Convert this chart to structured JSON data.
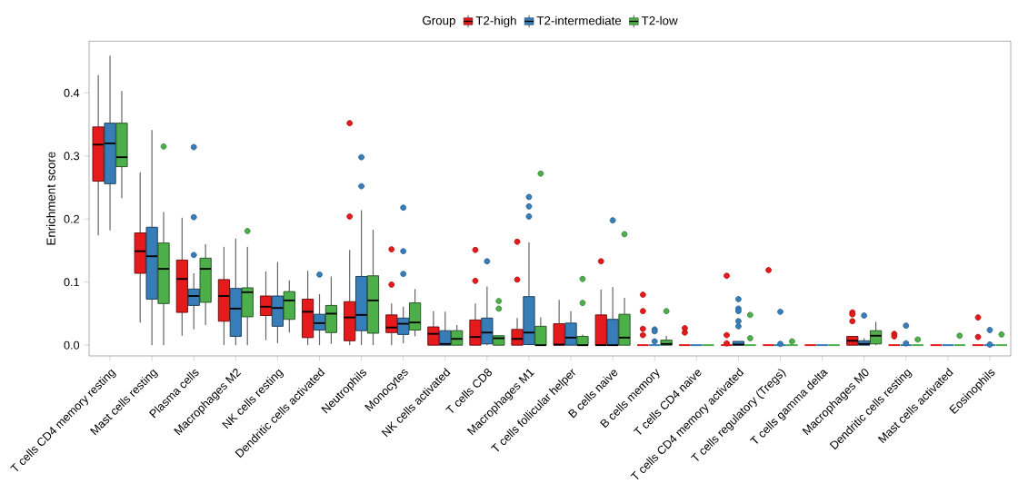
{
  "chart_data": {
    "type": "box",
    "ylabel": "Enrichment score",
    "legend_title": "Group",
    "legend": "top",
    "categories": [
      "T cells CD4 memory resting",
      "Mast cells resting",
      "Plasma cells",
      "Macrophages M2",
      "NK cells resting",
      "Dendritic cells activated",
      "Neutrophils",
      "Monocytes",
      "NK cells activated",
      "T cells CD8",
      "Macrophages M1",
      "T cells follicular helper",
      "B cells naive",
      "B cells memory",
      "T cells CD4 naive",
      "T cells CD4 memory activated",
      "T cells regulatory (Tregs)",
      "T cells gamma delta",
      "Macrophages M0",
      "Dendritic cells resting",
      "Mast cells activated",
      "Eosinophils"
    ],
    "ylim": [
      -0.017,
      0.482
    ],
    "yticks": [
      {
        "value": 0,
        "label": "0.0"
      },
      {
        "value": 0.1,
        "label": "0.1"
      },
      {
        "value": 0.2,
        "label": "0.2"
      },
      {
        "value": 0.3,
        "label": "0.3"
      },
      {
        "value": 0.4,
        "label": "0.4"
      }
    ],
    "series": [
      {
        "name": "T2-high",
        "color": "#e41a1c",
        "boxes": [
          {
            "low": 0.174,
            "q1": 0.26,
            "median": 0.318,
            "q3": 0.346,
            "high": 0.428
          },
          {
            "low": 0.036,
            "q1": 0.114,
            "median": 0.149,
            "q3": 0.178,
            "high": 0.274
          },
          {
            "low": 0.015,
            "q1": 0.052,
            "median": 0.105,
            "q3": 0.135,
            "high": 0.202
          },
          {
            "low": 0,
            "q1": 0.038,
            "median": 0.078,
            "q3": 0.104,
            "high": 0.156
          },
          {
            "low": 0.008,
            "q1": 0.047,
            "median": 0.061,
            "q3": 0.078,
            "high": 0.117
          },
          {
            "low": 0,
            "q1": 0.012,
            "median": 0.053,
            "q3": 0.073,
            "high": 0.118
          },
          {
            "low": 0,
            "q1": 0.007,
            "median": 0.044,
            "q3": 0.069,
            "high": 0.151,
            "outliers": [
              0.352,
              0.204
            ]
          },
          {
            "low": 0,
            "q1": 0.02,
            "median": 0.028,
            "q3": 0.048,
            "high": 0.066,
            "outliers": [
              0.152,
              0.096
            ]
          },
          {
            "low": 0,
            "q1": 0,
            "median": 0.018,
            "q3": 0.029,
            "high": 0.054
          },
          {
            "low": 0,
            "q1": 0,
            "median": 0.013,
            "q3": 0.04,
            "high": 0.066,
            "outliers": [
              0.151,
              0.102
            ]
          },
          {
            "low": 0,
            "q1": 0,
            "median": 0.01,
            "q3": 0.025,
            "high": 0.043,
            "outliers": [
              0.164,
              0.104
            ]
          },
          {
            "low": 0,
            "q1": 0,
            "median": 0.001,
            "q3": 0.034,
            "high": 0.072
          },
          {
            "low": 0,
            "q1": 0,
            "median": 0,
            "q3": 0.048,
            "high": 0.088,
            "outliers": [
              0.133
            ]
          },
          {
            "low": 0,
            "q1": 0,
            "median": 0,
            "q3": 0,
            "high": 0,
            "outliers": [
              0.08,
              0.054,
              0.026,
              0.016
            ]
          },
          {
            "low": 0,
            "q1": 0,
            "median": 0,
            "q3": 0,
            "high": 0,
            "outliers": [
              0.027,
              0.02
            ]
          },
          {
            "low": 0,
            "q1": 0,
            "median": 0,
            "q3": 0,
            "high": 0,
            "outliers": [
              0.11,
              0.016,
              0.003
            ]
          },
          {
            "low": 0,
            "q1": 0,
            "median": 0,
            "q3": 0,
            "high": 0,
            "outliers": [
              0.119
            ]
          },
          {
            "low": 0,
            "q1": 0,
            "median": 0,
            "q3": 0,
            "high": 0
          },
          {
            "low": 0,
            "q1": 0,
            "median": 0.007,
            "q3": 0.014,
            "high": 0.014,
            "outliers": [
              0.052,
              0.049,
              0.038
            ]
          },
          {
            "low": 0,
            "q1": 0,
            "median": 0,
            "q3": 0,
            "high": 0,
            "outliers": [
              0.018,
              0.014
            ]
          },
          {
            "low": 0,
            "q1": 0,
            "median": 0,
            "q3": 0,
            "high": 0
          },
          {
            "low": 0,
            "q1": 0,
            "median": 0,
            "q3": 0,
            "high": 0,
            "outliers": [
              0.044,
              0.013
            ]
          }
        ]
      },
      {
        "name": "T2-intermediate",
        "color": "#377eb8",
        "boxes": [
          {
            "low": 0.182,
            "q1": 0.256,
            "median": 0.32,
            "q3": 0.352,
            "high": 0.459
          },
          {
            "low": 0,
            "q1": 0.073,
            "median": 0.141,
            "q3": 0.187,
            "high": 0.341
          },
          {
            "low": 0.025,
            "q1": 0.063,
            "median": 0.078,
            "q3": 0.089,
            "high": 0.114,
            "outliers": [
              0.314,
              0.203,
              0.143
            ]
          },
          {
            "low": 0,
            "q1": 0.014,
            "median": 0.058,
            "q3": 0.09,
            "high": 0.169
          },
          {
            "low": 0.003,
            "q1": 0.03,
            "median": 0.059,
            "q3": 0.078,
            "high": 0.132
          },
          {
            "low": 0,
            "q1": 0.024,
            "median": 0.035,
            "q3": 0.049,
            "high": 0.081,
            "outliers": [
              0.112
            ]
          },
          {
            "low": 0,
            "q1": 0.023,
            "median": 0.048,
            "q3": 0.109,
            "high": 0.214,
            "outliers": [
              0.298,
              0.252
            ]
          },
          {
            "low": 0.003,
            "q1": 0.017,
            "median": 0.034,
            "q3": 0.043,
            "high": 0.061,
            "outliers": [
              0.218,
              0.149,
              0.113
            ]
          },
          {
            "low": 0,
            "q1": 0,
            "median": 0.002,
            "q3": 0.023,
            "high": 0.053
          },
          {
            "low": 0,
            "q1": 0.002,
            "median": 0.02,
            "q3": 0.043,
            "high": 0.093,
            "outliers": [
              0.133
            ]
          },
          {
            "low": 0,
            "q1": 0.001,
            "median": 0.02,
            "q3": 0.077,
            "high": 0.163,
            "outliers": [
              0.235,
              0.22,
              0.204
            ]
          },
          {
            "low": 0,
            "q1": 0,
            "median": 0.012,
            "q3": 0.035,
            "high": 0.054
          },
          {
            "low": 0,
            "q1": 0,
            "median": 0,
            "q3": 0.041,
            "high": 0.092,
            "outliers": [
              0.198
            ]
          },
          {
            "low": 0,
            "q1": 0,
            "median": 0,
            "q3": 0,
            "high": 0,
            "outliers": [
              0.025,
              0.022,
              0.006
            ]
          },
          {
            "low": 0,
            "q1": 0,
            "median": 0,
            "q3": 0,
            "high": 0
          },
          {
            "low": 0,
            "q1": 0,
            "median": 0.001,
            "q3": 0.006,
            "high": 0.006,
            "outliers": [
              0.073,
              0.058,
              0.054,
              0.038,
              0.03
            ]
          },
          {
            "low": 0,
            "q1": 0,
            "median": 0,
            "q3": 0,
            "high": 0,
            "outliers": [
              0.053,
              0.002
            ]
          },
          {
            "low": 0,
            "q1": 0,
            "median": 0,
            "q3": 0,
            "high": 0
          },
          {
            "low": 0,
            "q1": 0,
            "median": 0.002,
            "q3": 0.007,
            "high": 0.011,
            "outliers": [
              0.047
            ]
          },
          {
            "low": 0,
            "q1": 0,
            "median": 0,
            "q3": 0,
            "high": 0,
            "outliers": [
              0.031,
              0.003
            ]
          },
          {
            "low": 0,
            "q1": 0,
            "median": 0,
            "q3": 0,
            "high": 0
          },
          {
            "low": 0,
            "q1": 0,
            "median": 0,
            "q3": 0,
            "high": 0,
            "outliers": [
              0.024,
              0.001
            ]
          }
        ]
      },
      {
        "name": "T2-low",
        "color": "#4daf4a",
        "boxes": [
          {
            "low": 0.233,
            "q1": 0.283,
            "median": 0.298,
            "q3": 0.352,
            "high": 0.403
          },
          {
            "low": 0,
            "q1": 0.066,
            "median": 0.121,
            "q3": 0.162,
            "high": 0.211,
            "outliers": [
              0.315
            ]
          },
          {
            "low": 0.032,
            "q1": 0.068,
            "median": 0.121,
            "q3": 0.138,
            "high": 0.16
          },
          {
            "low": 0,
            "q1": 0.045,
            "median": 0.084,
            "q3": 0.091,
            "high": 0.156,
            "outliers": [
              0.181
            ]
          },
          {
            "low": 0.02,
            "q1": 0.041,
            "median": 0.071,
            "q3": 0.085,
            "high": 0.103
          },
          {
            "low": 0.002,
            "q1": 0.02,
            "median": 0.05,
            "q3": 0.063,
            "high": 0.109
          },
          {
            "low": 0,
            "q1": 0.019,
            "median": 0.071,
            "q3": 0.11,
            "high": 0.183
          },
          {
            "low": 0.014,
            "q1": 0.024,
            "median": 0.036,
            "q3": 0.067,
            "high": 0.089
          },
          {
            "low": 0,
            "q1": 0,
            "median": 0.01,
            "q3": 0.023,
            "high": 0.032
          },
          {
            "low": 0,
            "q1": 0,
            "median": 0.011,
            "q3": 0.015,
            "high": 0.015,
            "outliers": [
              0.07,
              0.058
            ]
          },
          {
            "low": 0,
            "q1": 0,
            "median": 0,
            "q3": 0.03,
            "high": 0.044,
            "outliers": [
              0.272
            ]
          },
          {
            "low": 0,
            "q1": 0,
            "median": 0,
            "q3": 0.014,
            "high": 0.017,
            "outliers": [
              0.105,
              0.067
            ]
          },
          {
            "low": 0,
            "q1": 0,
            "median": 0.012,
            "q3": 0.049,
            "high": 0.075,
            "outliers": [
              0.176
            ]
          },
          {
            "low": 0,
            "q1": 0,
            "median": 0.002,
            "q3": 0.008,
            "high": 0.015,
            "outliers": [
              0.054
            ]
          },
          {
            "low": 0,
            "q1": 0,
            "median": 0,
            "q3": 0,
            "high": 0
          },
          {
            "low": 0,
            "q1": 0,
            "median": 0,
            "q3": 0,
            "high": 0,
            "outliers": [
              0.048,
              0.011
            ]
          },
          {
            "low": 0,
            "q1": 0,
            "median": 0,
            "q3": 0,
            "high": 0,
            "outliers": [
              0.006
            ]
          },
          {
            "low": 0,
            "q1": 0,
            "median": 0,
            "q3": 0,
            "high": 0
          },
          {
            "low": 0,
            "q1": 0.002,
            "median": 0.015,
            "q3": 0.023,
            "high": 0.037
          },
          {
            "low": 0,
            "q1": 0,
            "median": 0,
            "q3": 0,
            "high": 0,
            "outliers": [
              0.009
            ]
          },
          {
            "low": 0,
            "q1": 0,
            "median": 0,
            "q3": 0,
            "high": 0,
            "outliers": [
              0.015
            ]
          },
          {
            "low": 0,
            "q1": 0,
            "median": 0,
            "q3": 0,
            "high": 0,
            "outliers": [
              0.017
            ]
          }
        ]
      }
    ]
  }
}
